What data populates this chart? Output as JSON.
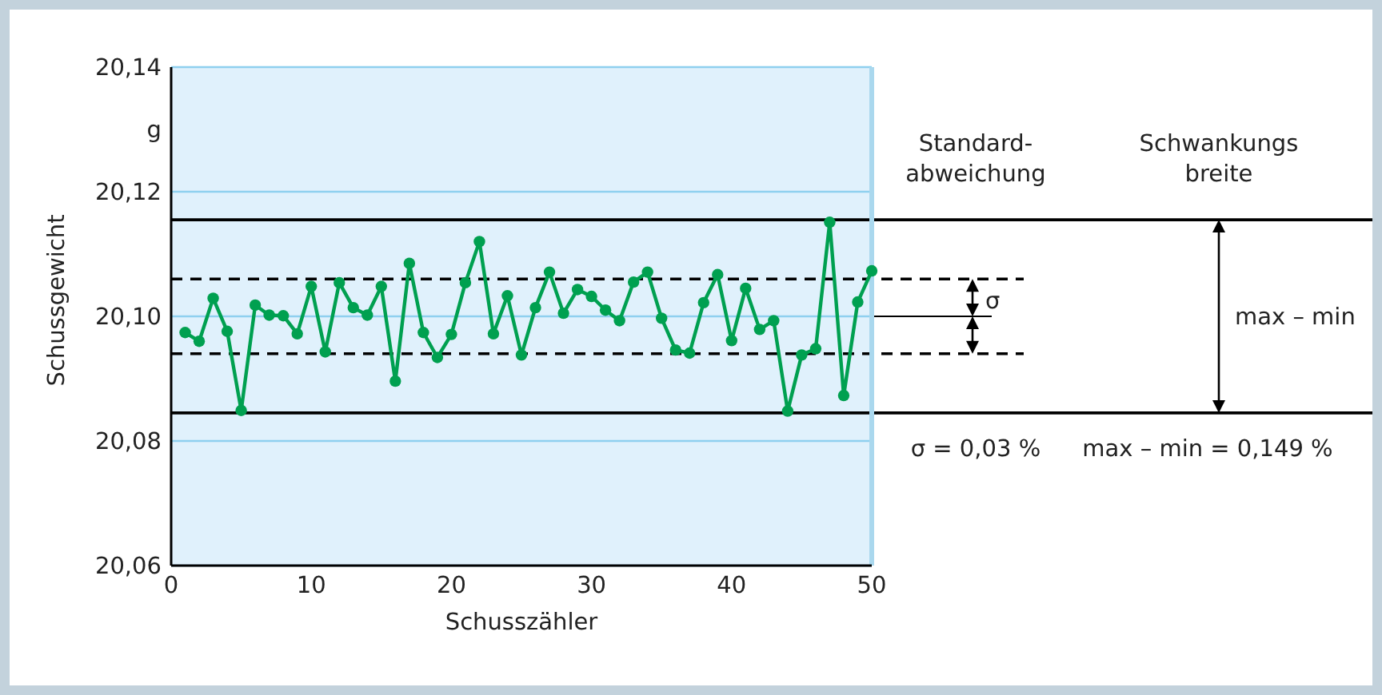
{
  "chart_data": {
    "type": "line",
    "xlabel": "Schusszähler",
    "ylabel": "Schussgewicht",
    "x": [
      1,
      2,
      3,
      4,
      5,
      6,
      7,
      8,
      9,
      10,
      11,
      12,
      13,
      14,
      15,
      16,
      17,
      18,
      19,
      20,
      21,
      22,
      23,
      24,
      25,
      26,
      27,
      28,
      29,
      30,
      31,
      32,
      33,
      34,
      35,
      36,
      37,
      38,
      39,
      40,
      41,
      42,
      43,
      44,
      45,
      46,
      47,
      48,
      49,
      50
    ],
    "series": [
      {
        "color": "#00a050",
        "values": [
          20.0974,
          20.096,
          20.1029,
          20.0976,
          20.0849,
          20.1018,
          20.1002,
          20.1001,
          20.0972,
          20.1048,
          20.0943,
          20.1054,
          20.1014,
          20.1002,
          20.1048,
          20.0896,
          20.1085,
          20.0974,
          20.0934,
          20.0971,
          20.1054,
          20.112,
          20.0972,
          20.1033,
          20.0938,
          20.1014,
          20.1071,
          20.1005,
          20.1043,
          20.1032,
          20.101,
          20.0993,
          20.1055,
          20.1071,
          20.0997,
          20.0946,
          20.0941,
          20.1022,
          20.1067,
          20.0961,
          20.1045,
          20.0979,
          20.0993,
          20.0848,
          20.0938,
          20.0948,
          20.1151,
          20.0873,
          20.1023,
          20.1073
        ]
      }
    ],
    "xlim": [
      0,
      50
    ],
    "xticks": [
      0,
      10,
      20,
      30,
      40,
      50
    ],
    "ylim": [
      20.06,
      20.14
    ],
    "yticks": [
      {
        "value": 20.06,
        "label": "20,06"
      },
      {
        "value": 20.08,
        "label": "20,08"
      },
      {
        "value": 20.1,
        "label": "20,10"
      },
      {
        "value": 20.12,
        "label": "20,12"
      },
      {
        "value": 20.13,
        "label": "g"
      },
      {
        "value": 20.14,
        "label": "20,14"
      }
    ],
    "grid": "y",
    "marker": "circle",
    "line_style": "solid",
    "ref_lines": [
      {
        "axis": "y",
        "value": 20.1155,
        "color": "#000000",
        "line_style": "solid"
      },
      {
        "axis": "y",
        "value": 20.106,
        "color": "#000000",
        "line_style": "dashed"
      },
      {
        "axis": "y",
        "value": 20.094,
        "color": "#000000",
        "line_style": "dashed"
      },
      {
        "axis": "y",
        "value": 20.0845,
        "color": "#000000",
        "line_style": "solid"
      }
    ],
    "annotations": [
      "Standard-\nabweichung",
      "Schwankungs\nbreite",
      "σ",
      "max – min",
      "σ = 0,03 %",
      "max – min = 0,149 %"
    ]
  }
}
